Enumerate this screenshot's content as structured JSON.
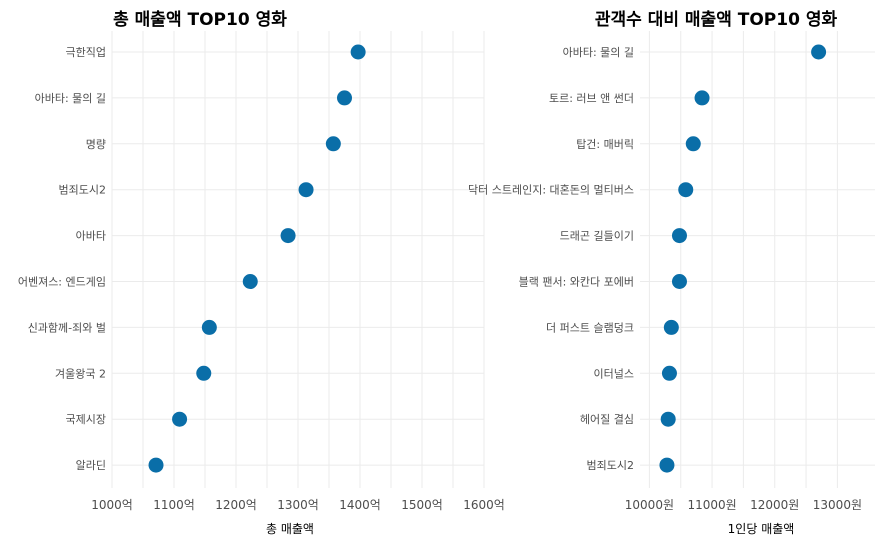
{
  "chart_data": [
    {
      "type": "scatter",
      "title": "총 매출액 TOP10 영화",
      "xlabel": "총 매출액",
      "ylabel": "",
      "xlim": [
        1000,
        1600
      ],
      "xticks": [
        1000,
        1100,
        1200,
        1300,
        1400,
        1500,
        1600
      ],
      "xtick_labels": [
        "1000억",
        "1100억",
        "1200억",
        "1300억",
        "1400억",
        "1500억",
        "1600억"
      ],
      "categories": [
        "극한직업",
        "아바타: 물의 길",
        "명량",
        "범죄도시2",
        "아바타",
        "어벤져스: 엔드게임",
        "신과함께-죄와 벌",
        "겨울왕국 2",
        "국제시장",
        "알라딘"
      ],
      "values": [
        1397,
        1375,
        1357,
        1313,
        1284,
        1223,
        1157,
        1148,
        1109,
        1071
      ],
      "point_color": "#0a6ea8",
      "grid": true
    },
    {
      "type": "scatter",
      "title": "관객수 대비 매출액 TOP10 영화",
      "xlabel": "1인당 매출액",
      "ylabel": "",
      "xlim": [
        9850,
        13600
      ],
      "xticks": [
        10000,
        11000,
        12000,
        13000
      ],
      "xtick_labels": [
        "10000원",
        "11000원",
        "12000원",
        "13000원"
      ],
      "categories": [
        "아바타: 물의 길",
        "토르: 러브 앤 썬더",
        "탑건: 매버릭",
        "닥터 스트레인지: 대혼돈의 멀티버스",
        "드래곤 길들이기",
        "블랙 팬서: 와칸다 포에버",
        "더 퍼스트 슬램덩크",
        "이터널스",
        "헤어질 결심",
        "범죄도시2"
      ],
      "values": [
        12700,
        10840,
        10700,
        10580,
        10480,
        10480,
        10350,
        10320,
        10300,
        10280
      ],
      "point_color": "#0a6ea8",
      "grid": true
    }
  ]
}
